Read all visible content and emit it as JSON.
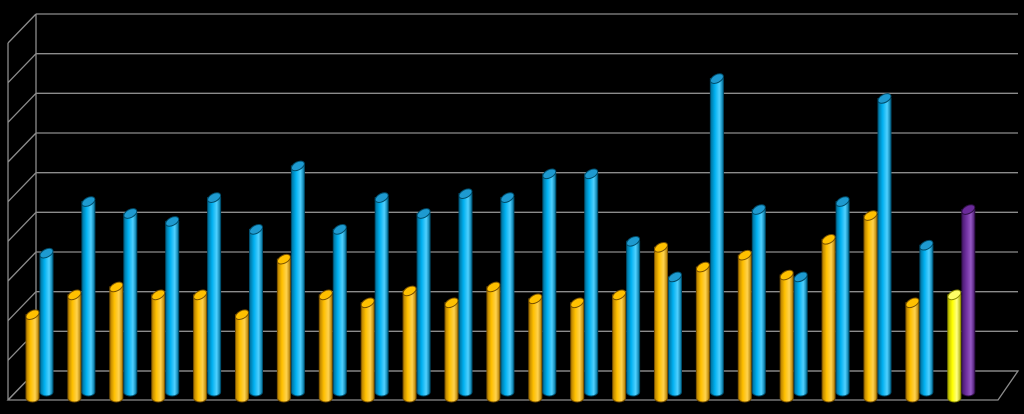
{
  "chart_data": {
    "type": "bar",
    "style": "3d-cylinder",
    "title": "",
    "xlabel": "",
    "ylabel": "",
    "ylim": [
      0,
      9
    ],
    "grid": true,
    "legend": "none",
    "tick_labels_visible": false,
    "categories": [
      "1",
      "2",
      "3",
      "4",
      "5",
      "6",
      "7",
      "8",
      "9",
      "10",
      "11",
      "12",
      "13",
      "14",
      "15",
      "16",
      "17",
      "18",
      "19",
      "20",
      "21",
      "22",
      "23"
    ],
    "series": [
      {
        "color": "#FFC000",
        "values": [
          2.1,
          2.6,
          2.8,
          2.6,
          2.6,
          2.1,
          3.5,
          2.6,
          2.4,
          2.7,
          2.4,
          2.8,
          2.5,
          2.4,
          2.6,
          3.8,
          3.3,
          3.6,
          3.1,
          4.0,
          4.6,
          2.4,
          2.6
        ]
      },
      {
        "color": "#00B0F0",
        "values": [
          3.5,
          4.8,
          4.5,
          4.3,
          4.9,
          4.1,
          5.7,
          4.1,
          4.9,
          4.5,
          5.0,
          4.9,
          5.5,
          5.5,
          3.8,
          2.9,
          7.9,
          4.6,
          2.9,
          4.8,
          7.4,
          3.7,
          4.6
        ]
      }
    ],
    "point_colors": {
      "series_0_last": "#FFFF00",
      "series_1_last": "#7030A0"
    }
  }
}
